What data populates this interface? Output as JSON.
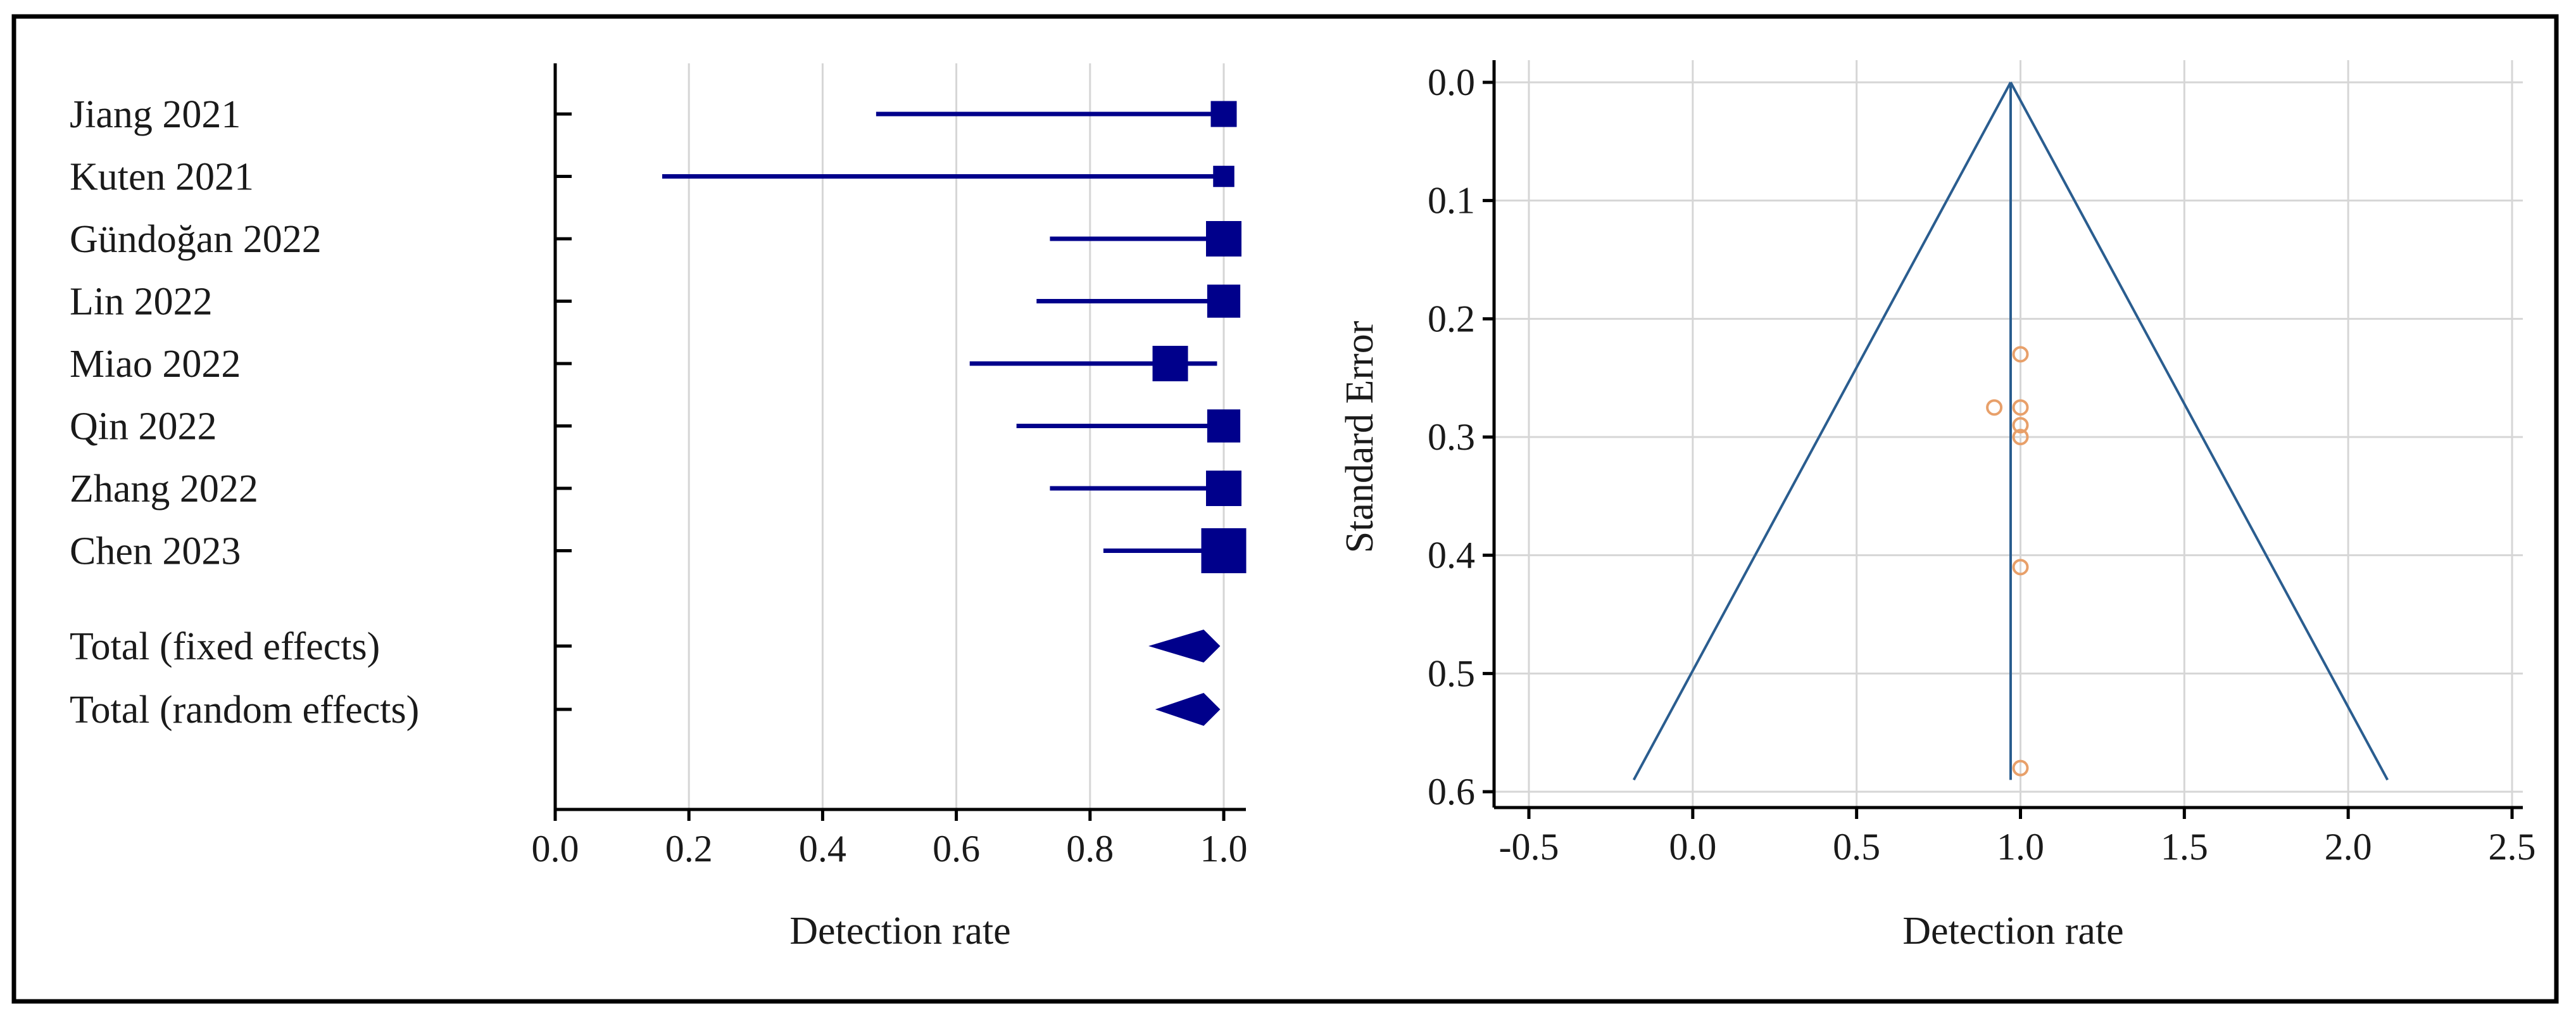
{
  "colors": {
    "marker": "#00008b",
    "funnel_line": "#2a5d8f",
    "funnel_point": "#e8a06a",
    "grid": "#d6d6d6",
    "axis": "#000000",
    "frame": "#000000"
  },
  "chart_data": [
    {
      "type": "forest",
      "title": "",
      "xlabel": "Detection rate",
      "ylabel": "",
      "xlim": [
        0,
        1.0
      ],
      "x_ticks": [
        "0.0",
        "0.2",
        "0.4",
        "0.6",
        "0.8",
        "1.0"
      ],
      "x_tick_values": [
        0,
        0.2,
        0.4,
        0.6,
        0.8,
        1.0
      ],
      "studies": [
        {
          "label": "Jiang 2021",
          "estimate": 1.0,
          "ci_low": 0.48,
          "ci_high": 1.0,
          "weight": 2
        },
        {
          "label": "Kuten 2021",
          "estimate": 1.0,
          "ci_low": 0.16,
          "ci_high": 1.0,
          "weight": 1
        },
        {
          "label": "Gündoğan 2022",
          "estimate": 1.0,
          "ci_low": 0.74,
          "ci_high": 1.0,
          "weight": 4
        },
        {
          "label": "Lin 2022",
          "estimate": 1.0,
          "ci_low": 0.72,
          "ci_high": 1.0,
          "weight": 3.5
        },
        {
          "label": "Miao 2022",
          "estimate": 0.92,
          "ci_low": 0.62,
          "ci_high": 0.99,
          "weight": 4
        },
        {
          "label": "Qin 2022",
          "estimate": 1.0,
          "ci_low": 0.69,
          "ci_high": 1.0,
          "weight": 3.5
        },
        {
          "label": "Zhang 2022",
          "estimate": 1.0,
          "ci_low": 0.74,
          "ci_high": 1.0,
          "weight": 4
        },
        {
          "label": "Chen 2023",
          "estimate": 1.0,
          "ci_low": 0.82,
          "ci_high": 1.0,
          "weight": 6
        }
      ],
      "totals": [
        {
          "label": "Total (fixed effects)",
          "estimate": 0.97,
          "ci_low": 0.93,
          "ci_high": 0.99
        },
        {
          "label": "Total (random effects)",
          "estimate": 0.97,
          "ci_low": 0.94,
          "ci_high": 0.99
        }
      ]
    },
    {
      "type": "funnel",
      "title": "",
      "xlabel": "Detection rate",
      "ylabel": "Standard Error",
      "xlim": [
        -0.6,
        2.55
      ],
      "ylim": [
        0.0,
        0.62
      ],
      "y_inverted": true,
      "x_ticks": [
        "-0.5",
        "0.0",
        "0.5",
        "1.0",
        "1.5",
        "2.0",
        "2.5"
      ],
      "x_tick_values": [
        -0.5,
        0.0,
        0.5,
        1.0,
        1.5,
        2.0,
        2.5
      ],
      "y_ticks": [
        "0.0",
        "0.1",
        "0.2",
        "0.3",
        "0.4",
        "0.5",
        "0.6"
      ],
      "y_tick_values": [
        0.0,
        0.1,
        0.2,
        0.3,
        0.4,
        0.5,
        0.6
      ],
      "pooled_estimate": 0.97,
      "funnel_se_max": 0.59,
      "funnel_left_x_at_max": -0.18,
      "funnel_right_x_at_max": 2.12,
      "points": [
        {
          "x": 1.0,
          "y": 0.23
        },
        {
          "x": 0.92,
          "y": 0.275
        },
        {
          "x": 1.0,
          "y": 0.275
        },
        {
          "x": 1.0,
          "y": 0.29
        },
        {
          "x": 1.0,
          "y": 0.3
        },
        {
          "x": 1.0,
          "y": 0.41
        },
        {
          "x": 1.0,
          "y": 0.58
        }
      ]
    }
  ]
}
